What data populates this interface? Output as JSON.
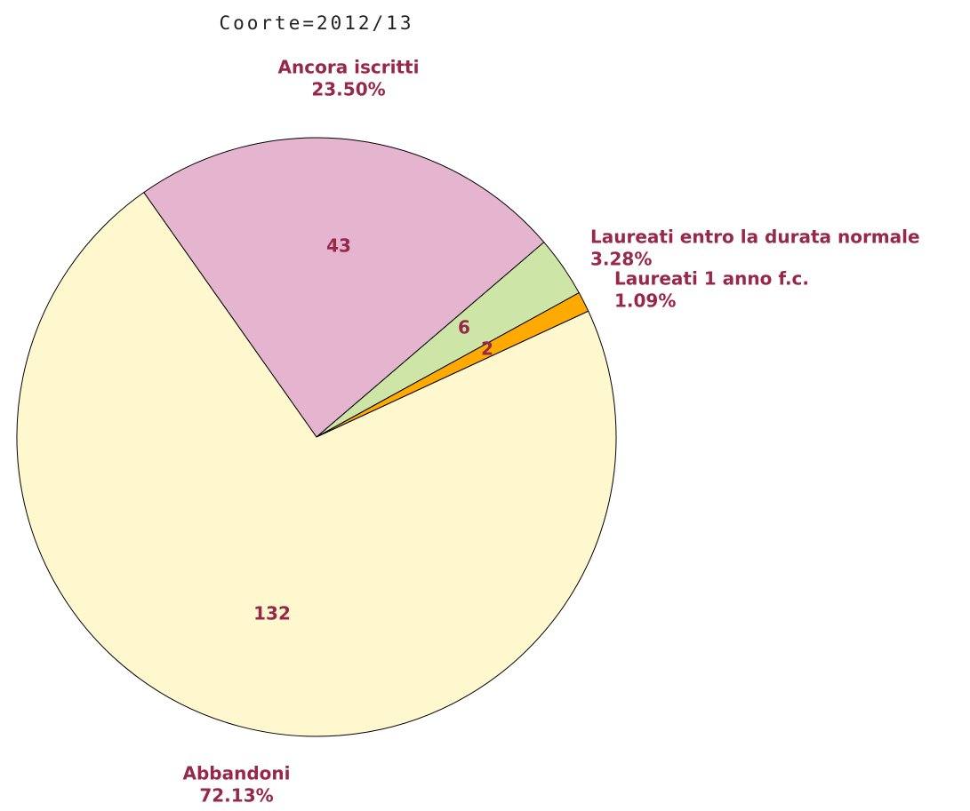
{
  "chart_data": {
    "type": "pie",
    "title": "Coorte=2012/13",
    "categories": [
      "Ancora iscritti",
      "Laureati entro la durata normale",
      "Laureati 1 anno f.c.",
      "Abbandoni"
    ],
    "values": [
      43,
      6,
      2,
      132
    ],
    "percentages": [
      23.5,
      3.28,
      1.09,
      72.13
    ],
    "percentage_labels": [
      "23.50%",
      "3.28%",
      "1.09%",
      "72.13%"
    ],
    "colors": [
      "#e5b5cf",
      "#cde5a6",
      "#ffaa00",
      "#fff8cf"
    ]
  }
}
